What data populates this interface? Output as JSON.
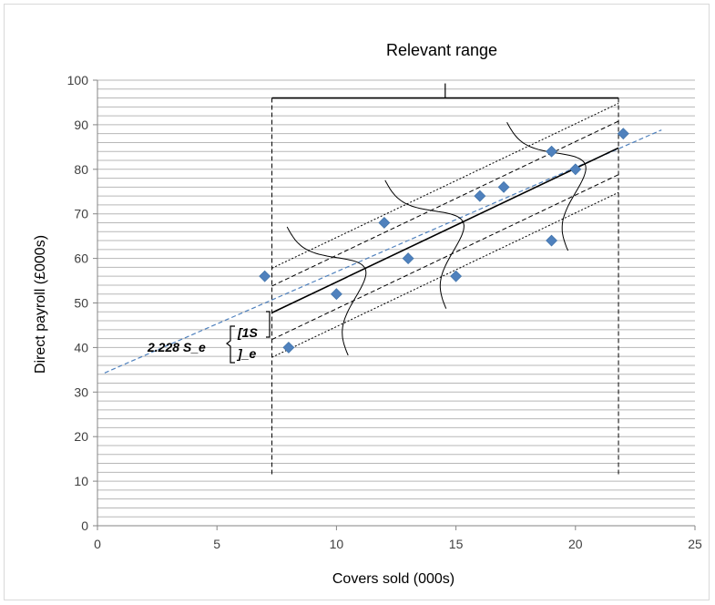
{
  "chart_data": {
    "type": "scatter",
    "title": "",
    "xlabel": "Covers sold (000s)",
    "ylabel": "Direct payroll (£000s)",
    "xlim": [
      0,
      25
    ],
    "ylim": [
      0,
      100
    ],
    "x_ticks": [
      0,
      5,
      10,
      15,
      20,
      25
    ],
    "y_ticks": [
      0,
      10,
      20,
      30,
      40,
      50,
      60,
      70,
      80,
      90,
      100
    ],
    "grid": "horizontal",
    "legend": "none",
    "series": [
      {
        "marker": "diamond",
        "color": "#4f81bd",
        "points": [
          {
            "x": 7,
            "y": 56
          },
          {
            "x": 8,
            "y": 40
          },
          {
            "x": 10,
            "y": 52
          },
          {
            "x": 12,
            "y": 68
          },
          {
            "x": 13,
            "y": 60
          },
          {
            "x": 15,
            "y": 56
          },
          {
            "x": 16,
            "y": 74
          },
          {
            "x": 17,
            "y": 76
          },
          {
            "x": 19,
            "y": 84
          },
          {
            "x": 19,
            "y": 64
          },
          {
            "x": 20,
            "y": 80
          },
          {
            "x": 22,
            "y": 88
          }
        ]
      }
    ],
    "regression_line": {
      "intercept": 33.6,
      "slope": 2.34,
      "x_range": [
        0.3,
        23.6
      ],
      "color": "#4f81bd",
      "style": "dashed"
    },
    "fitted_line": {
      "x_range": [
        7.3,
        21.8
      ],
      "y_range": [
        47.8,
        84.8
      ],
      "style": "solid"
    },
    "bands": [
      {
        "offset": 10,
        "style": "dotted"
      },
      {
        "offset": 6,
        "style": "dashed"
      },
      {
        "offset": -6,
        "style": "dashed"
      },
      {
        "offset": -10,
        "style": "dotted"
      }
    ],
    "relevant_range": {
      "x_from": 7.3,
      "x_to": 21.8,
      "y_top": 96,
      "y_bottom": 11
    },
    "annotations": {
      "range_title": "Relevant range",
      "outer_label": "2.228 S_e",
      "inner_top": "[1S",
      "inner_bottom": "]_e"
    }
  }
}
